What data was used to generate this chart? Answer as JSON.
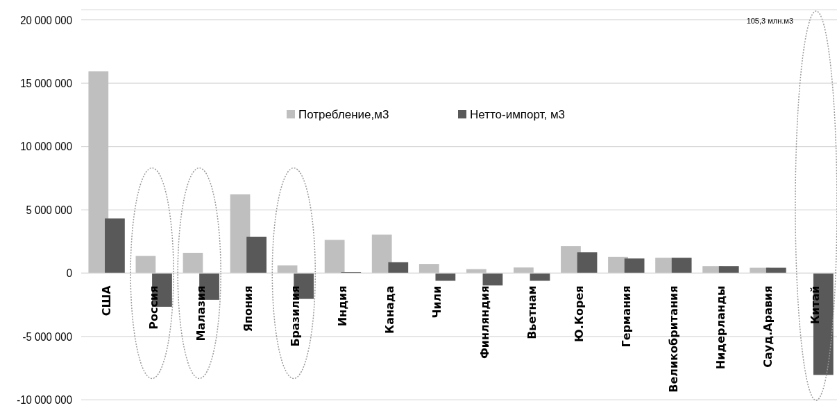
{
  "chart_data": {
    "type": "bar",
    "categories": [
      "США",
      "Россия",
      "Малазия",
      "Япония",
      "Бразилия",
      "Индия",
      "Канада",
      "Чили",
      "Финляндия",
      "Вьетнам",
      "Ю.Корея",
      "Германия",
      "Великобритания",
      "Нидерланды",
      "Сауд.Аравия",
      "Китай"
    ],
    "series": [
      {
        "name": "Потребление,м3",
        "color": "#bfbfbf",
        "values": [
          15930000,
          1360000,
          1610000,
          6230000,
          610000,
          2630000,
          3050000,
          730000,
          320000,
          450000,
          2150000,
          1290000,
          1220000,
          560000,
          430000,
          null
        ]
      },
      {
        "name": "Нетто-импорт, м3",
        "color": "#595959",
        "values": [
          4320000,
          -2650000,
          -2100000,
          2880000,
          -2030000,
          80000,
          870000,
          -600000,
          -970000,
          -600000,
          1650000,
          1160000,
          1220000,
          560000,
          430000,
          -8030000
        ]
      }
    ],
    "annotations": [
      "105,3 млн.м3"
    ],
    "ylim": [
      -10800000,
      20800000
    ],
    "yticks": [
      {
        "value": -10000000,
        "label": "-10 000 000"
      },
      {
        "value": -5000000,
        "label": "-5 000 000"
      },
      {
        "value": 0,
        "label": "0"
      },
      {
        "value": 5000000,
        "label": "5 000 000"
      },
      {
        "value": 10000000,
        "label": "10 000 000"
      },
      {
        "value": 15000000,
        "label": "15 000 000"
      },
      {
        "value": 20000000,
        "label": "20 000 000"
      }
    ],
    "grid": "y",
    "legend": "top"
  }
}
